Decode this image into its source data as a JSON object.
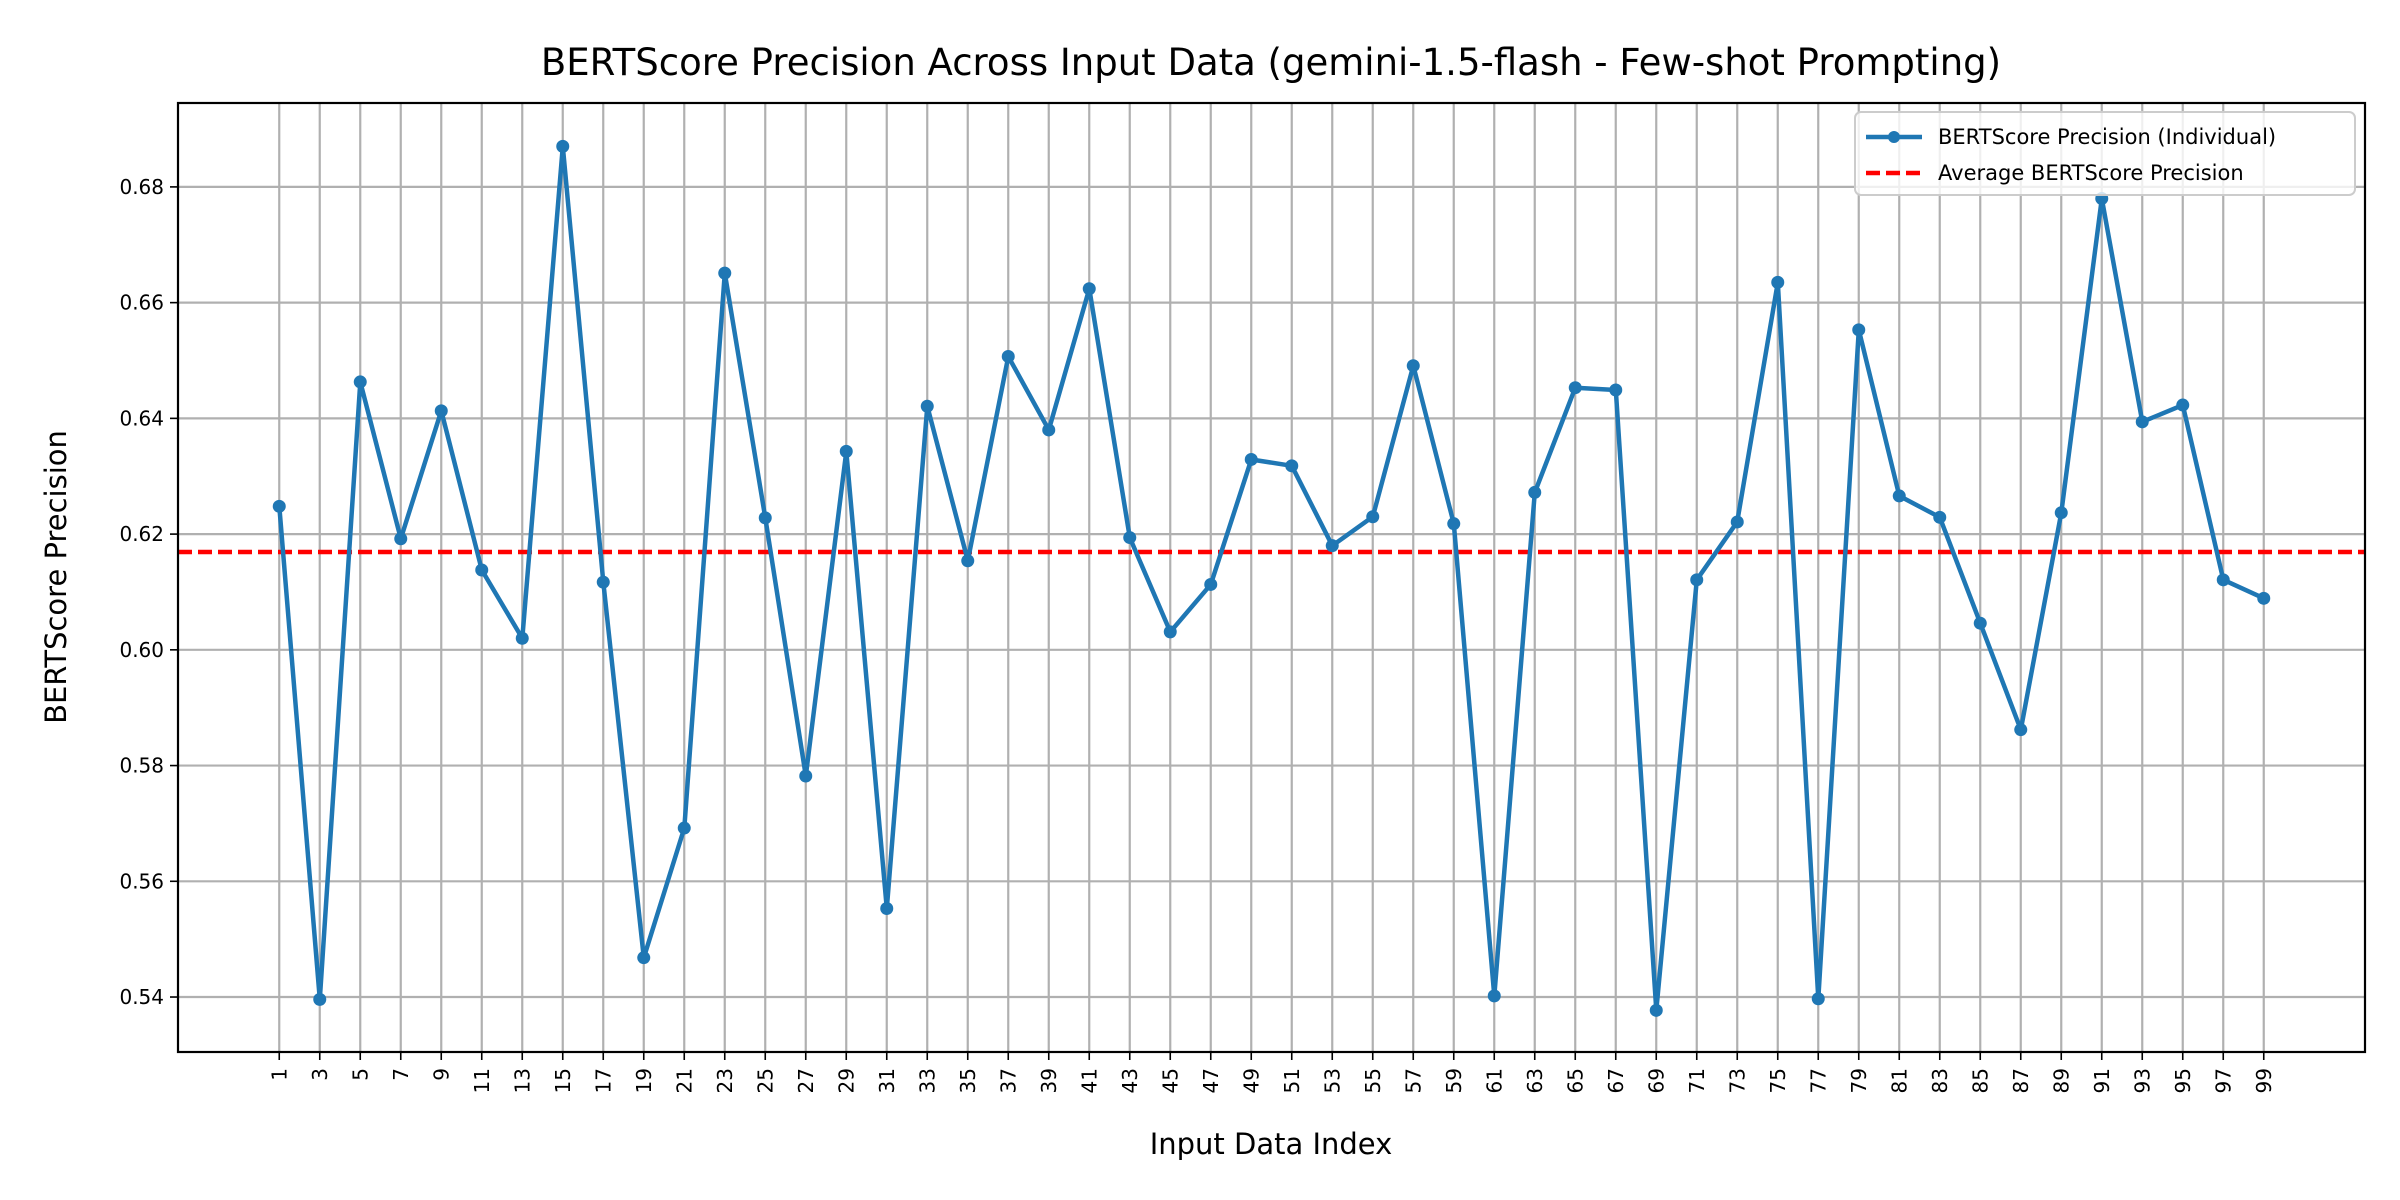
{
  "chart_data": {
    "type": "line",
    "title": "BERTScore Precision Across Input Data (gemini-1.5-flash - Few-shot Prompting)",
    "xlabel": "Input Data Index",
    "ylabel": "BERTScore Precision",
    "xlim": [
      -4,
      104
    ],
    "ylim": [
      0.5305,
      0.6945
    ],
    "yticks": [
      0.54,
      0.56,
      0.58,
      0.6,
      0.62,
      0.64,
      0.66,
      0.68
    ],
    "ytick_labels": [
      "0.54",
      "0.56",
      "0.58",
      "0.60",
      "0.62",
      "0.64",
      "0.66",
      "0.68"
    ],
    "xticks": [
      1,
      3,
      5,
      7,
      9,
      11,
      13,
      15,
      17,
      19,
      21,
      23,
      25,
      27,
      29,
      31,
      33,
      35,
      37,
      39,
      41,
      43,
      45,
      47,
      49,
      51,
      53,
      55,
      57,
      59,
      61,
      63,
      65,
      67,
      69,
      71,
      73,
      75,
      77,
      79,
      81,
      83,
      85,
      87,
      89,
      91,
      93,
      95,
      97,
      99
    ],
    "grid": true,
    "legend_position": "top-right",
    "series": [
      {
        "name": "BERTScore Precision (Individual)",
        "color": "#1f77b4",
        "style": "line-with-markers",
        "x": [
          1,
          3,
          5,
          7,
          9,
          11,
          13,
          15,
          17,
          19,
          21,
          23,
          25,
          27,
          29,
          31,
          33,
          35,
          37,
          39,
          41,
          43,
          45,
          47,
          49,
          51,
          53,
          55,
          57,
          59,
          61,
          63,
          65,
          67,
          69,
          71,
          73,
          75,
          77,
          79,
          81,
          83,
          85,
          87,
          89,
          91,
          93,
          95,
          97,
          99
        ],
        "values": [
          0.6248,
          0.5396,
          0.6463,
          0.6192,
          0.6413,
          0.6138,
          0.602,
          0.687,
          0.6117,
          0.5468,
          0.5692,
          0.6651,
          0.6228,
          0.5782,
          0.6343,
          0.5553,
          0.6421,
          0.6154,
          0.6507,
          0.638,
          0.6624,
          0.6194,
          0.6031,
          0.6113,
          0.6329,
          0.6318,
          0.618,
          0.623,
          0.6491,
          0.6218,
          0.5402,
          0.6272,
          0.6453,
          0.6449,
          0.5377,
          0.6121,
          0.6221,
          0.6635,
          0.5397,
          0.6553,
          0.6266,
          0.6229,
          0.6046,
          0.5862,
          0.6237,
          0.678,
          0.6394,
          0.6423,
          0.6121,
          0.6089
        ]
      },
      {
        "name": "Average BERTScore Precision",
        "color": "#ff0000",
        "style": "dashed",
        "y": 0.6169
      }
    ]
  }
}
